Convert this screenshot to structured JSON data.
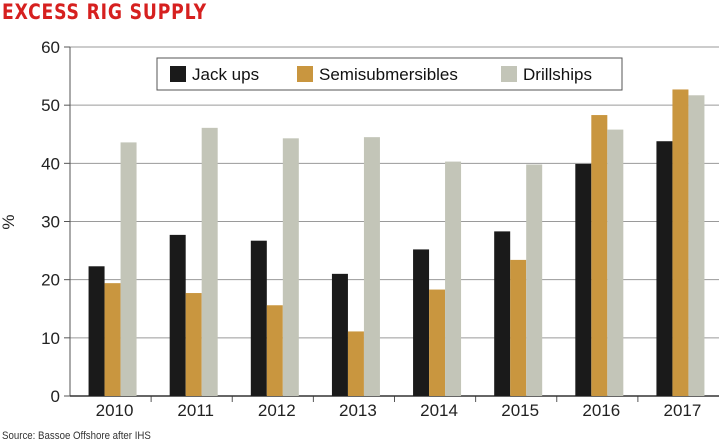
{
  "title": "EXCESS RIG SUPPLY",
  "source": "Source: Bassoe Offshore after IHS",
  "chart_data": {
    "type": "bar",
    "categories": [
      "2010",
      "2011",
      "2012",
      "2013",
      "2014",
      "2015",
      "2016",
      "2017"
    ],
    "series": [
      {
        "name": "Jack ups",
        "color": "#1a1a1a",
        "values": [
          22.3,
          27.7,
          26.7,
          21.0,
          25.2,
          28.3,
          39.9,
          43.8
        ]
      },
      {
        "name": "Semisubmersibles",
        "color": "#c9963f",
        "values": [
          19.4,
          17.7,
          15.6,
          11.1,
          18.3,
          23.4,
          48.3,
          52.7
        ]
      },
      {
        "name": "Drillships",
        "color": "#c3c5b8",
        "values": [
          43.6,
          46.1,
          44.3,
          44.5,
          40.3,
          39.8,
          45.8,
          51.7
        ]
      }
    ],
    "ylabel": "%",
    "xlabel": "",
    "ylim": [
      0,
      60
    ],
    "yticks": [
      0,
      10,
      20,
      30,
      40,
      50,
      60
    ],
    "legend_position": "top-center"
  }
}
